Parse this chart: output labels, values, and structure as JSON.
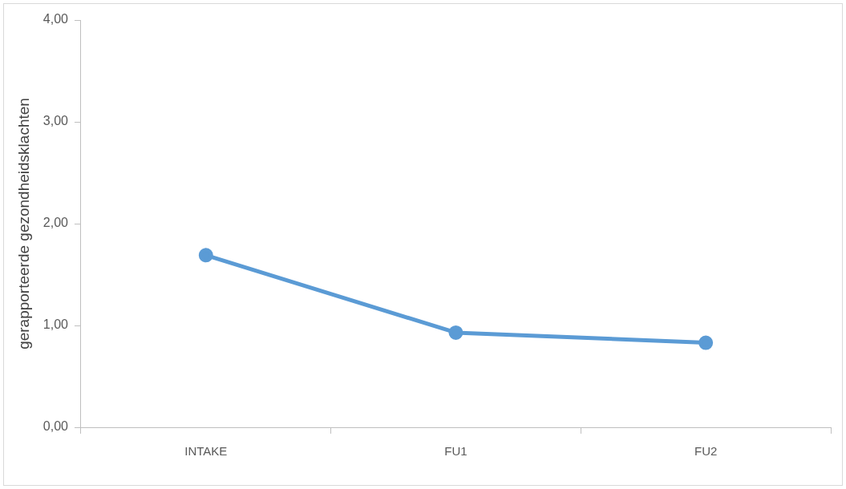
{
  "chart_data": {
    "type": "line",
    "ylabel": "gerapporteerde gezondheidsklachten",
    "categories": [
      "INTAKE",
      "FU1",
      "FU2"
    ],
    "series": [
      {
        "color": "#5b9bd5",
        "values": [
          1.69,
          0.93,
          0.83
        ]
      }
    ],
    "ylim": [
      0,
      4
    ],
    "yticks": [
      {
        "value": 0,
        "label": "0,00"
      },
      {
        "value": 1,
        "label": "1,00"
      },
      {
        "value": 2,
        "label": "2,00"
      },
      {
        "value": 3,
        "label": "3,00"
      },
      {
        "value": 4,
        "label": "4,00"
      }
    ],
    "marker": "circle"
  }
}
